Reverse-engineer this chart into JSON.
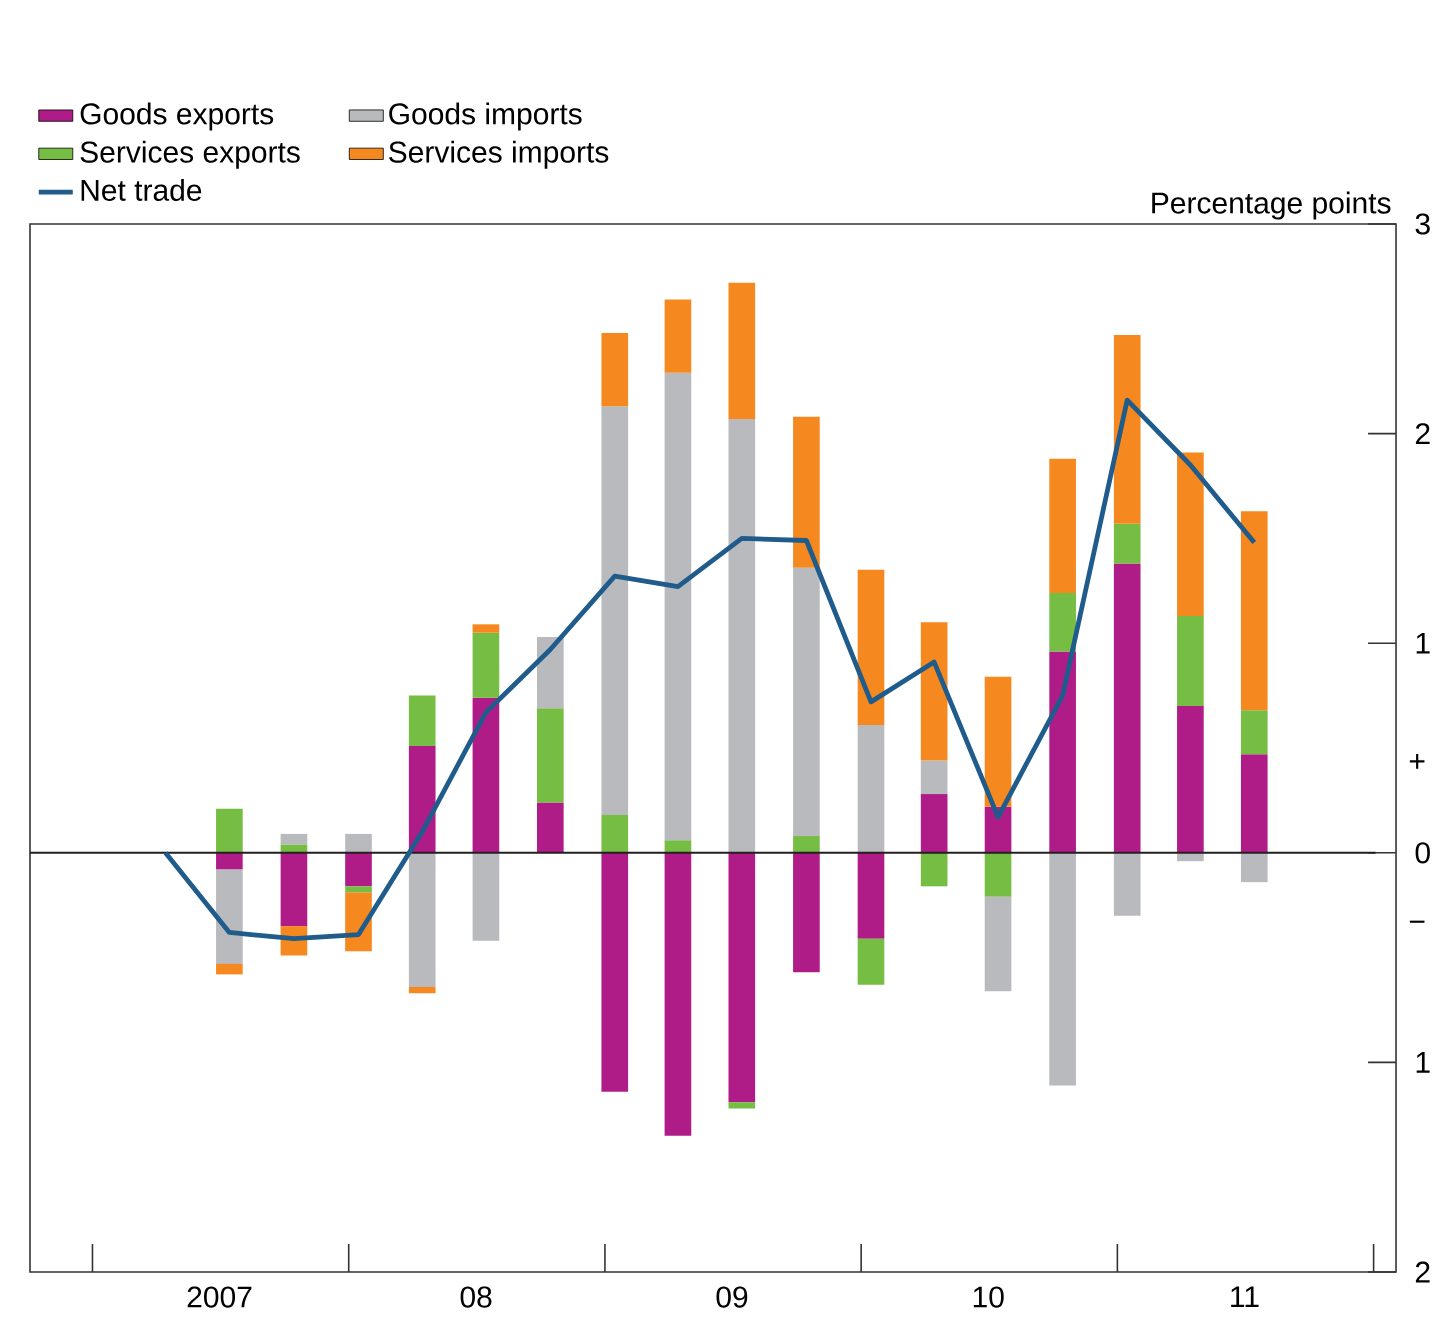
{
  "chart_data": {
    "type": "bar",
    "stacked": true,
    "ylabel": "Percentage points",
    "x": [
      "2007-04-15",
      "2007-07-15",
      "2007-10-15",
      "2008-01-15",
      "2008-04-15",
      "2008-07-15",
      "2008-10-15",
      "2009-01-15",
      "2009-04-15",
      "2009-07-15",
      "2009-10-15",
      "2010-01-15",
      "2010-04-15",
      "2010-07-15",
      "2010-10-15",
      "2011-01-15",
      "2011-04-15",
      "2011-07-15"
    ],
    "series": [
      {
        "name": "Goods exports",
        "color": "#b01c87",
        "values": [
          null,
          -0.08,
          -0.35,
          -0.16,
          0.51,
          0.74,
          0.24,
          -1.14,
          -1.35,
          -1.19,
          -0.57,
          -0.41,
          0.28,
          0.22,
          0.96,
          1.38,
          0.7,
          0.47
        ]
      },
      {
        "name": "Services exports",
        "color": "#76bd43",
        "values": [
          null,
          0.21,
          0.04,
          -0.03,
          0.24,
          0.31,
          0.45,
          0.18,
          0.06,
          -0.03,
          0.08,
          -0.22,
          -0.16,
          -0.21,
          0.28,
          0.19,
          0.43,
          0.21
        ]
      },
      {
        "name": "Goods imports",
        "color": "#b9babd",
        "values": [
          null,
          -0.45,
          0.05,
          0.09,
          -0.64,
          -0.42,
          0.34,
          1.95,
          2.23,
          2.07,
          1.28,
          0.61,
          0.16,
          -0.45,
          -1.11,
          -0.3,
          -0.04,
          -0.14
        ]
      },
      {
        "name": "Services imports",
        "color": "#f5891f",
        "values": [
          null,
          -0.05,
          -0.14,
          -0.28,
          -0.03,
          0.04,
          null,
          0.35,
          0.35,
          0.65,
          0.72,
          0.74,
          0.66,
          0.62,
          0.64,
          0.9,
          0.78,
          0.95
        ]
      },
      {
        "name": "Net trade",
        "type": "line",
        "color": "#1f5c8c",
        "line_style": "solid",
        "values": [
          0,
          -0.38,
          -0.41,
          -0.39,
          0.1,
          0.67,
          0.97,
          1.32,
          1.27,
          1.5,
          1.49,
          0.72,
          0.91,
          0.17,
          0.75,
          2.16,
          1.85,
          1.48
        ]
      }
    ],
    "xlim": [
      "2006-10-04",
      "2012-02-02"
    ],
    "ylim": [
      -2,
      3
    ],
    "xticks": [
      {
        "value": "2007-01-01",
        "label": null
      },
      {
        "value": "2008-01-01",
        "label": null
      },
      {
        "value": "2009-01-01",
        "label": null
      },
      {
        "value": "2010-01-01",
        "label": null
      },
      {
        "value": "2011-01-01",
        "label": null
      },
      {
        "value": "2012-01-01",
        "label": null
      },
      {
        "value": "2007-07-01",
        "label": "2007"
      },
      {
        "value": "2008-07-01",
        "label": "08"
      },
      {
        "value": "2009-07-01",
        "label": "09"
      },
      {
        "value": "2010-07-01",
        "label": "10"
      },
      {
        "value": "2011-07-01",
        "label": "11"
      }
    ],
    "yticks": [
      3,
      2,
      1,
      0,
      {
        "value": -1,
        "label": "1"
      },
      {
        "value": -2,
        "label": "2"
      }
    ],
    "annotations": [
      "+",
      "−"
    ],
    "ref_lines": [
      {
        "axis": "y",
        "value": 0,
        "color": "#231f20"
      }
    ],
    "legend": "top left",
    "grid": false
  }
}
